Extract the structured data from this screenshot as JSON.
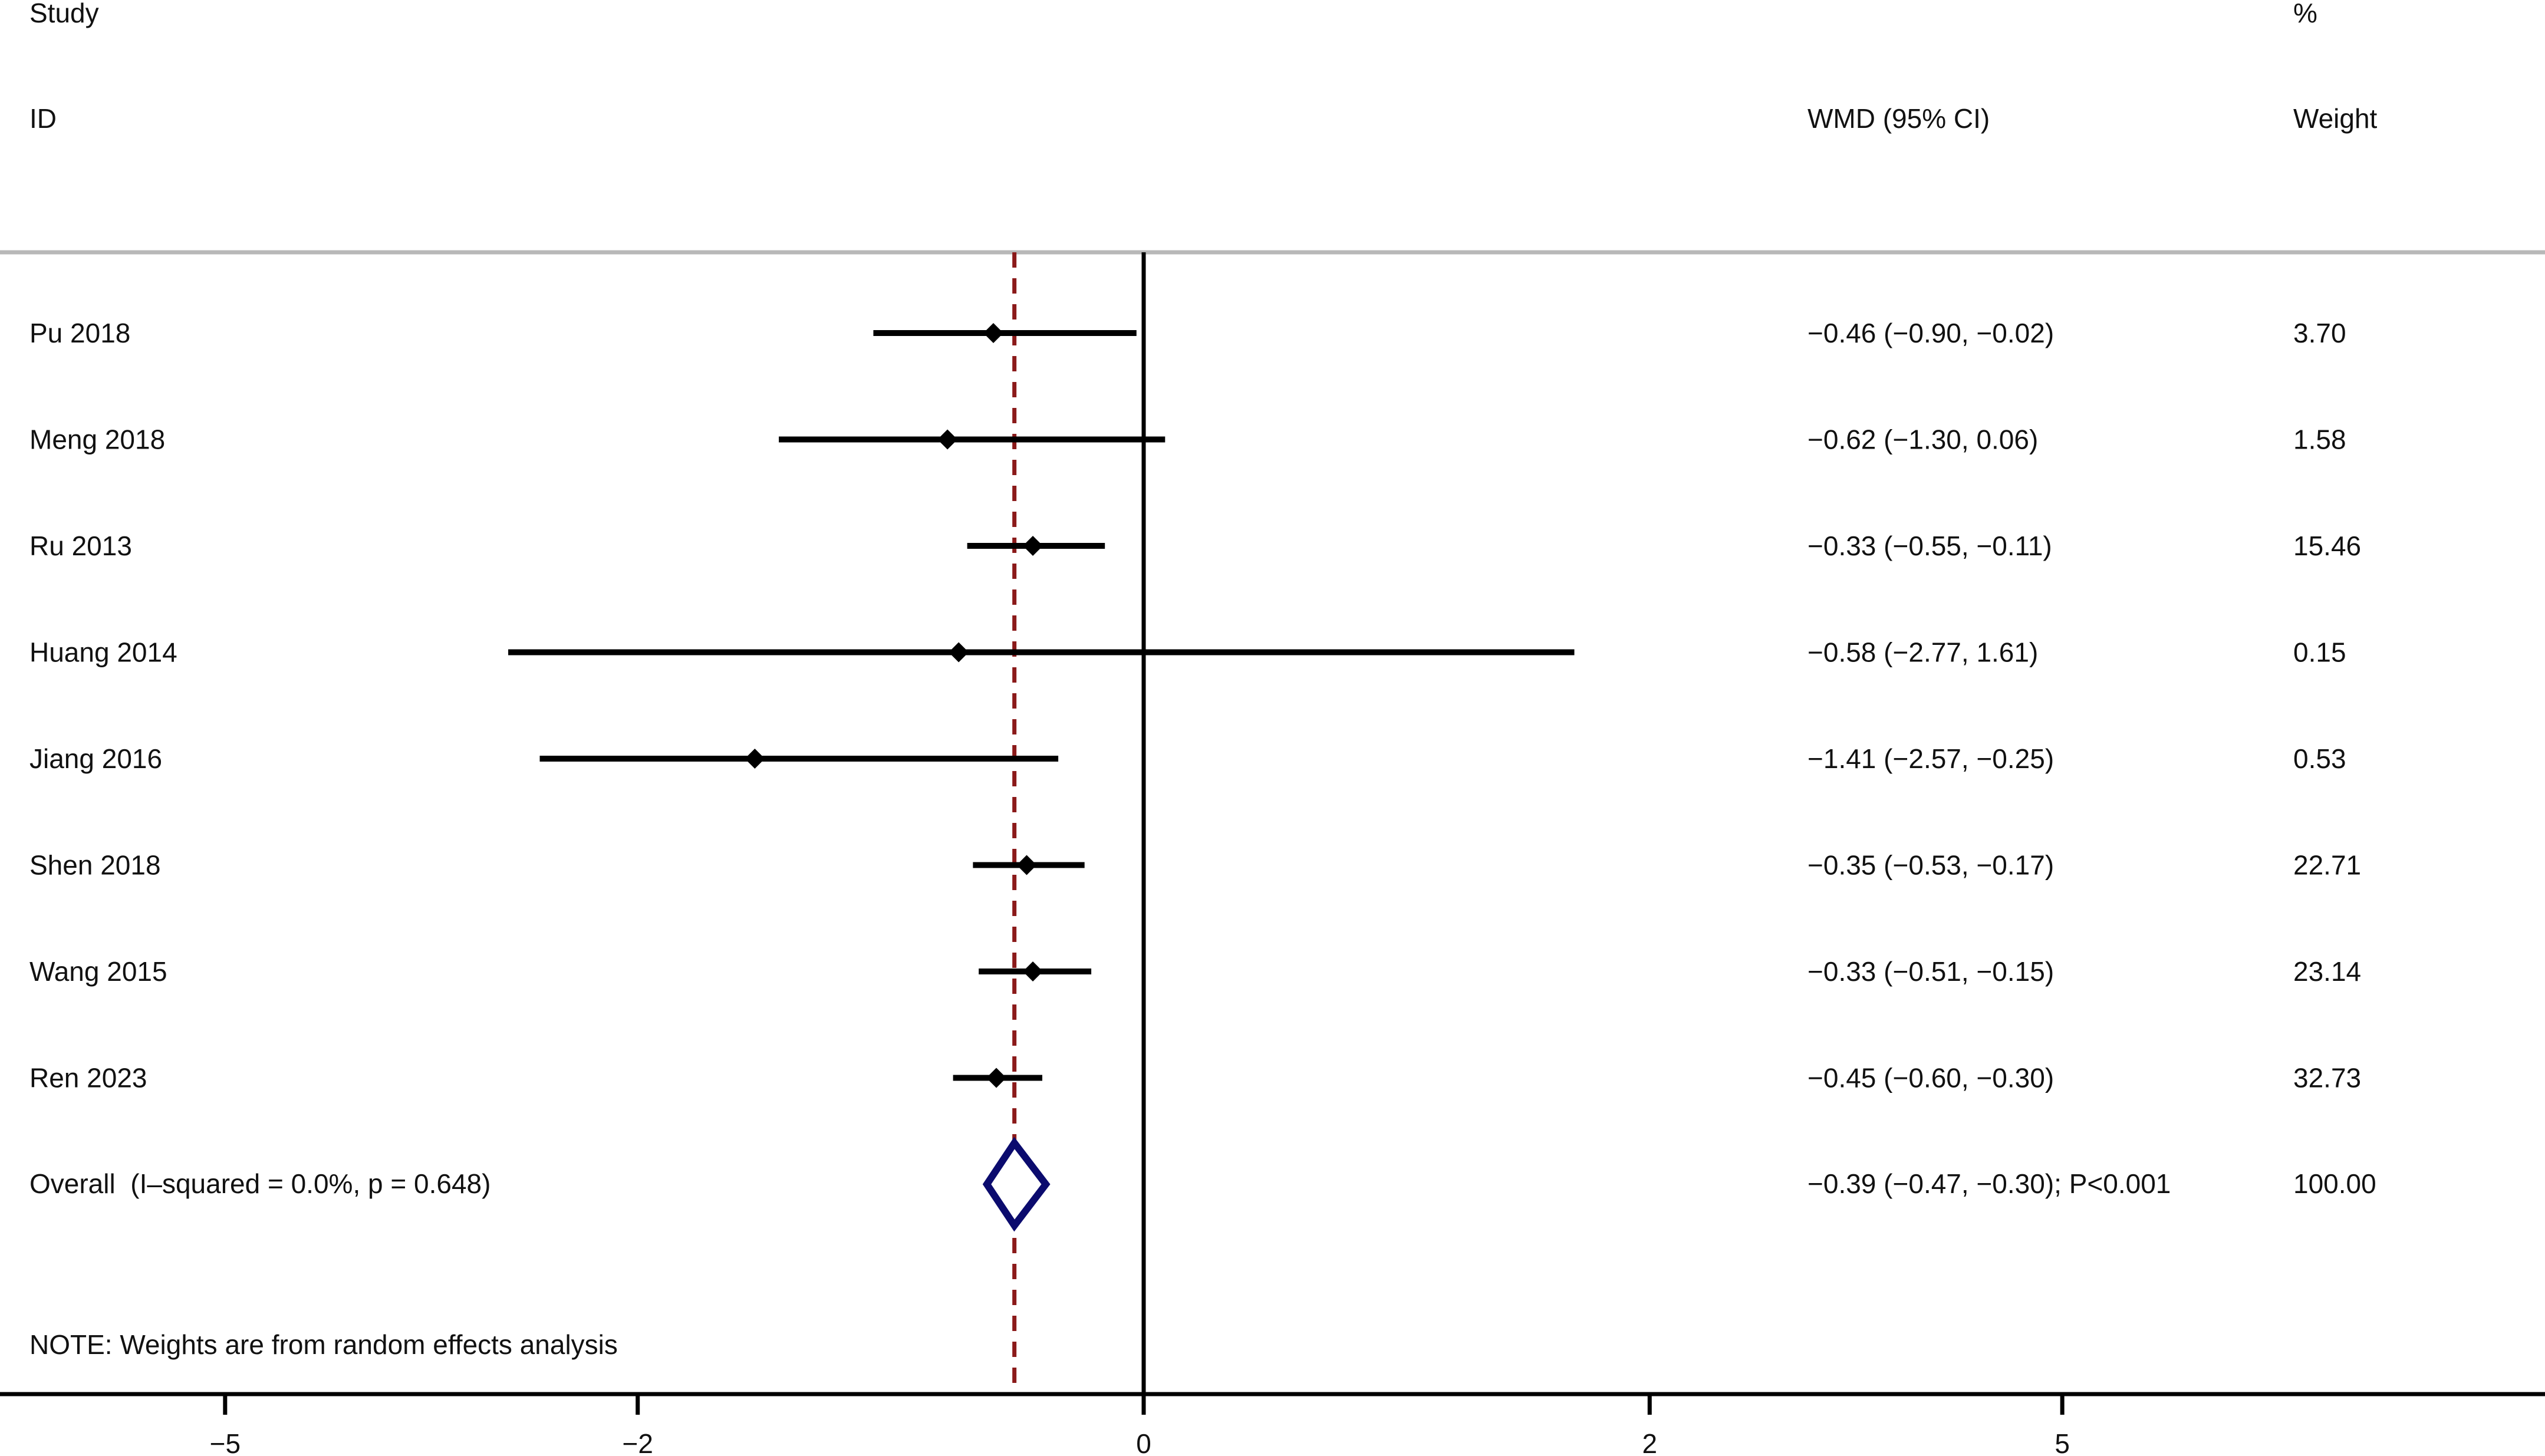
{
  "chart_data": {
    "type": "forest",
    "headers": {
      "study_line1": "Study",
      "study_line2": "ID",
      "effect": "WMD (95% CI)",
      "weight_line1": "%",
      "weight_line2": "Weight"
    },
    "studies": [
      {
        "label": "Pu 2018",
        "estimate": -0.46,
        "lower": -0.9,
        "upper": -0.02,
        "ci_text": "−0.46 (−0.90, −0.02)",
        "weight": "3.70"
      },
      {
        "label": "Meng 2018",
        "estimate": -0.62,
        "lower": -1.3,
        "upper": 0.06,
        "ci_text": "−0.62 (−1.30, 0.06)",
        "weight": "1.58"
      },
      {
        "label": "Ru 2013",
        "estimate": -0.33,
        "lower": -0.55,
        "upper": -0.11,
        "ci_text": "−0.33 (−0.55, −0.11)",
        "weight": "15.46"
      },
      {
        "label": "Huang 2014",
        "estimate": -0.58,
        "lower": -2.77,
        "upper": 1.61,
        "ci_text": "−0.58 (−2.77, 1.61)",
        "weight": "0.15"
      },
      {
        "label": "Jiang 2016",
        "estimate": -1.41,
        "lower": -2.57,
        "upper": -0.25,
        "ci_text": "−1.41 (−2.57, −0.25)",
        "weight": "0.53"
      },
      {
        "label": "Shen 2018",
        "estimate": -0.35,
        "lower": -0.53,
        "upper": -0.17,
        "ci_text": "−0.35 (−0.53, −0.17)",
        "weight": "22.71"
      },
      {
        "label": "Wang 2015",
        "estimate": -0.33,
        "lower": -0.51,
        "upper": -0.15,
        "ci_text": "−0.33 (−0.51, −0.15)",
        "weight": "23.14"
      },
      {
        "label": "Ren 2023",
        "estimate": -0.45,
        "lower": -0.6,
        "upper": -0.3,
        "ci_text": "−0.45 (−0.60, −0.30)",
        "weight": "32.73"
      }
    ],
    "overall": {
      "label": "Overall  (I–squared = 0.0%, p = 0.648)",
      "estimate": -0.39,
      "lower": -0.47,
      "upper": -0.3,
      "ci_text": "−0.39 (−0.47, −0.30); P<0.001",
      "weight": "100.00"
    },
    "note": "NOTE: Weights are from random effects analysis",
    "x_axis": {
      "ticks": [
        -5,
        -2,
        0,
        2,
        5
      ],
      "tick_labels": [
        "−5",
        "−2",
        "0",
        "2",
        "5"
      ],
      "scale": "symmetric-log",
      "null_line": 0,
      "xlabel": ""
    },
    "reference_line": -0.39,
    "colors": {
      "estimate": "#000000",
      "overall_diamond": "#0b0b6e",
      "reference_line": "#8b1a1a",
      "header_rule": "#b8b8b8",
      "axis": "#000000"
    }
  }
}
